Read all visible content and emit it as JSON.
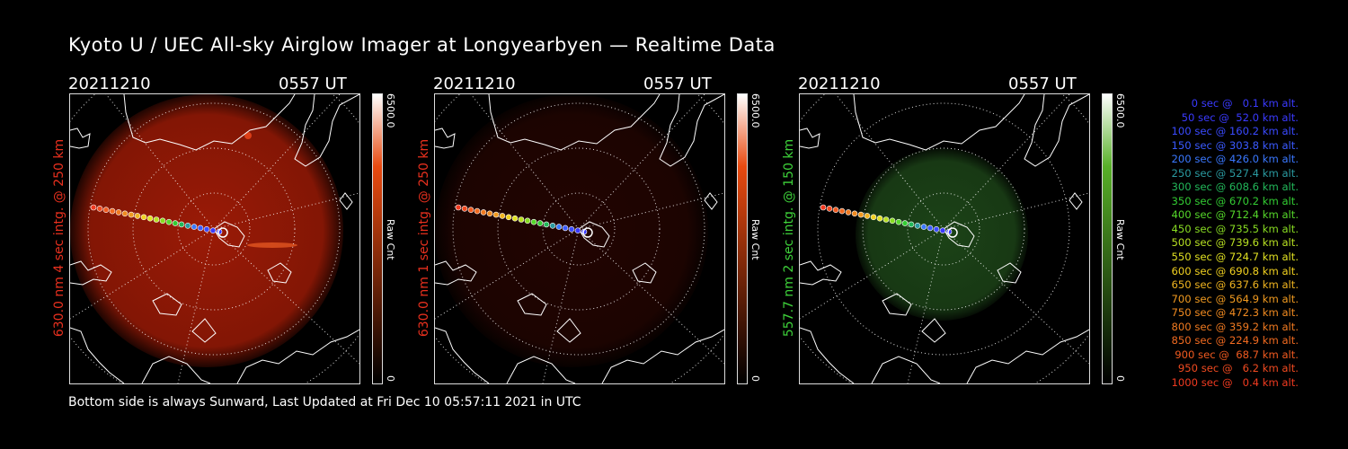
{
  "title": "Kyoto U / UEC All-sky Airglow Imager at Longyearbyen — Realtime Data",
  "panels": [
    {
      "date": "20211210",
      "time": "0557 UT",
      "ylabel": "630.0 nm 4 sec intg. @ 250 km",
      "ylabel_color": "#e8301e",
      "cbar_max": "6500.0",
      "cbar_min": "0",
      "cbar_label": "Raw Cnt",
      "glow_color": "#9a1a06",
      "glow_intensity": 1.0
    },
    {
      "date": "20211210",
      "time": "0557 UT",
      "ylabel": "630.0 nm 1 sec intg. @ 250 km",
      "ylabel_color": "#e8301e",
      "cbar_max": "6500.0",
      "cbar_min": "0",
      "cbar_label": "Raw Cnt",
      "glow_color": "#4a0a03",
      "glow_intensity": 0.45
    },
    {
      "date": "20211210",
      "time": "0557 UT",
      "ylabel": "557.7 nm 2 sec intg. @ 150 km",
      "ylabel_color": "#3ed23a",
      "cbar_max": "6500.0",
      "cbar_min": "0",
      "cbar_label": "Raw Cnt",
      "glow_color": "#1f4a1a",
      "glow_intensity": 0.9
    }
  ],
  "colors": {
    "red_bar_top": "#ffffff",
    "red_bar_mid": "#e84a10",
    "red_bar_bottom": "#000000",
    "green_bar_mid": "#58b028"
  },
  "legend": [
    {
      "text": "0 sec @   0.1 km alt.",
      "color": "#3a3aff"
    },
    {
      "text": "50 sec @  52.0 km alt.",
      "color": "#3a3aff"
    },
    {
      "text": "100 sec @ 160.2 km alt.",
      "color": "#3a4aff"
    },
    {
      "text": "150 sec @ 303.8 km alt.",
      "color": "#3a5aff"
    },
    {
      "text": "200 sec @ 426.0 km alt.",
      "color": "#3a78ff"
    },
    {
      "text": "250 sec @ 527.4 km alt.",
      "color": "#2a9aa0"
    },
    {
      "text": "300 sec @ 608.6 km alt.",
      "color": "#22b85a"
    },
    {
      "text": "350 sec @ 670.2 km alt.",
      "color": "#33cc33"
    },
    {
      "text": "400 sec @ 712.4 km alt.",
      "color": "#55d62a"
    },
    {
      "text": "450 sec @ 735.5 km alt.",
      "color": "#88dc22"
    },
    {
      "text": "500 sec @ 739.6 km alt.",
      "color": "#b8e022"
    },
    {
      "text": "550 sec @ 724.7 km alt.",
      "color": "#e0e022"
    },
    {
      "text": "600 sec @ 690.8 km alt.",
      "color": "#f0d020"
    },
    {
      "text": "650 sec @ 637.6 km alt.",
      "color": "#f0b420"
    },
    {
      "text": "700 sec @ 564.9 km alt.",
      "color": "#f09a20"
    },
    {
      "text": "750 sec @ 472.3 km alt.",
      "color": "#f08a20"
    },
    {
      "text": "800 sec @ 359.2 km alt.",
      "color": "#f07a20"
    },
    {
      "text": "850 sec @ 224.9 km alt.",
      "color": "#f06a20"
    },
    {
      "text": "900 sec @  68.7 km alt.",
      "color": "#f05a20"
    },
    {
      "text": "950 sec @   6.2 km alt.",
      "color": "#f04a20"
    },
    {
      "text": "1000 sec @   0.4 km alt.",
      "color": "#f03a20"
    }
  ],
  "footer": "Bottom side is always Sunward, Last Updated at Fri Dec 10 05:57:11 2021 in UTC"
}
